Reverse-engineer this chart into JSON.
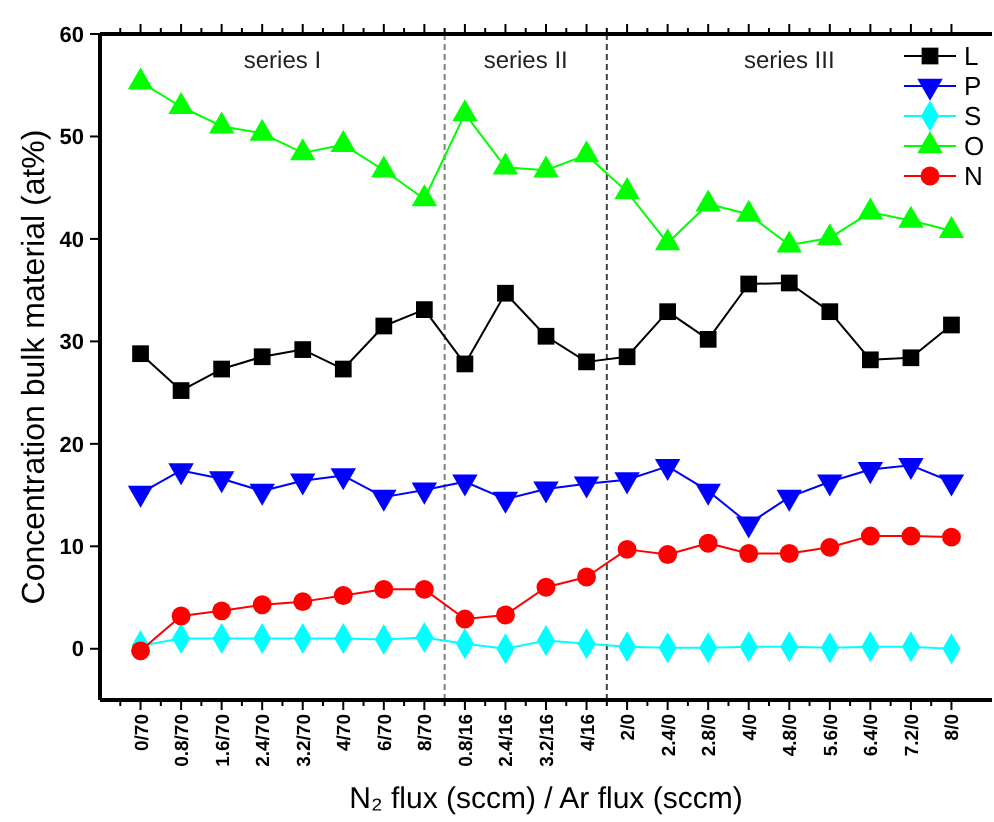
{
  "chart_data": {
    "type": "line",
    "xlabel": "N₂ flux (sccm) / Ar flux (sccm)",
    "ylabel": "Concentration bulk material (at%)",
    "categories": [
      "0/70",
      "0.8/70",
      "1.6/70",
      "2.4/70",
      "3.2/70",
      "4/70",
      "6/70",
      "8/70",
      "0.8/16",
      "2.4/16",
      "3.2/16",
      "4/16",
      "2/0",
      "2.4/0",
      "2.8/0",
      "4/0",
      "4.8/0",
      "5.6/0",
      "6.4/0",
      "7.2/0",
      "8/0"
    ],
    "ylim": [
      -5,
      60
    ],
    "yticks": [
      0,
      10,
      20,
      30,
      40,
      50,
      60
    ],
    "grid": false,
    "legend": "top right",
    "series": [
      {
        "name": "L",
        "color": "#000000",
        "marker": "square",
        "values": [
          28.8,
          25.2,
          27.3,
          28.5,
          29.2,
          27.3,
          31.5,
          33.1,
          27.8,
          34.7,
          30.5,
          28.0,
          28.5,
          32.9,
          30.2,
          35.6,
          35.7,
          32.9,
          28.2,
          28.4,
          31.6
        ]
      },
      {
        "name": "P",
        "color": "#0000ff",
        "marker": "triangle-down",
        "values": [
          15.2,
          17.4,
          16.6,
          15.4,
          16.4,
          16.9,
          14.8,
          15.5,
          16.3,
          14.6,
          15.6,
          16.1,
          16.5,
          17.8,
          15.4,
          12.2,
          14.8,
          16.3,
          17.5,
          17.9,
          16.3
        ]
      },
      {
        "name": "S",
        "color": "#00ffff",
        "marker": "diamond",
        "values": [
          0.3,
          1.0,
          1.0,
          1.0,
          1.0,
          1.0,
          0.9,
          1.1,
          0.5,
          0.0,
          0.8,
          0.5,
          0.2,
          0.1,
          0.1,
          0.2,
          0.2,
          0.1,
          0.2,
          0.2,
          0.0
        ]
      },
      {
        "name": "O",
        "color": "#00ff00",
        "marker": "triangle",
        "values": [
          55.3,
          52.9,
          51.0,
          50.3,
          48.4,
          49.2,
          46.7,
          43.9,
          52.2,
          47.0,
          46.7,
          48.2,
          44.6,
          39.6,
          43.4,
          42.4,
          39.4,
          40.1,
          42.6,
          41.8,
          40.8
        ]
      },
      {
        "name": "N",
        "color": "#ff0000",
        "marker": "circle",
        "values": [
          -0.2,
          3.2,
          3.7,
          4.3,
          4.6,
          5.2,
          5.8,
          5.8,
          2.9,
          3.3,
          6.0,
          7.0,
          9.7,
          9.2,
          10.3,
          9.3,
          9.3,
          9.9,
          11.0,
          11.0,
          10.9
        ]
      }
    ],
    "annotations": [
      "series I",
      "series II",
      "series III"
    ]
  }
}
